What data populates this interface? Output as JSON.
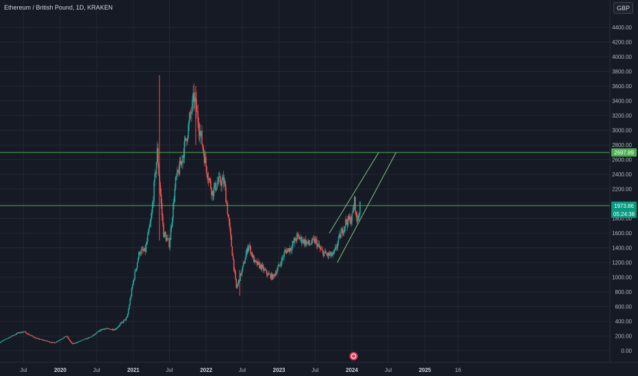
{
  "header": {
    "symbol_title": "Ethereum / British Pound, 1D, KRAKEN",
    "currency_button": "GBP"
  },
  "colors": {
    "background": "#161a25",
    "grid": "#232733",
    "up": "#26a69a",
    "down": "#ef5350",
    "level_line": "#4caf50",
    "channel_line": "#81c784",
    "current_tag": "#089981",
    "level_tag": "#4caf50",
    "event_marker": "#e2405f"
  },
  "chart_data": {
    "type": "candlestick",
    "title": "Ethereum / British Pound, 1D, KRAKEN",
    "ylabel": "",
    "xlabel": "",
    "ylim": [
      -150,
      4600
    ],
    "grid": true,
    "y_ticks": [
      "0.00",
      "200.00",
      "400.00",
      "600.00",
      "800.00",
      "1000.00",
      "1200.00",
      "1400.00",
      "1600.00",
      "1800.00",
      "2000.00",
      "2200.00",
      "2400.00",
      "2600.00",
      "2800.00",
      "3000.00",
      "3200.00",
      "3400.00",
      "3600.00",
      "3800.00",
      "4000.00",
      "4200.00",
      "4400.00"
    ],
    "x_ticks": [
      {
        "label": "Jul",
        "date": "2019-07",
        "year": false
      },
      {
        "label": "2020",
        "date": "2020-01",
        "year": true
      },
      {
        "label": "Jul",
        "date": "2020-07",
        "year": false
      },
      {
        "label": "2021",
        "date": "2021-01",
        "year": true
      },
      {
        "label": "Jul",
        "date": "2021-07",
        "year": false
      },
      {
        "label": "2022",
        "date": "2022-01",
        "year": true
      },
      {
        "label": "Jul",
        "date": "2022-07",
        "year": false
      },
      {
        "label": "2023",
        "date": "2023-01",
        "year": true
      },
      {
        "label": "Jul",
        "date": "2023-07",
        "year": false
      },
      {
        "label": "2024",
        "date": "2024-01",
        "year": true
      },
      {
        "label": "Jul",
        "date": "2024-07",
        "year": false
      },
      {
        "label": "2025",
        "date": "2025-01",
        "year": true
      },
      {
        "label": "16",
        "date": "2025-06-16",
        "year": false
      }
    ],
    "price_path": [
      [
        "2019-03",
        110
      ],
      [
        "2019-06",
        240
      ],
      [
        "2019-07",
        260
      ],
      [
        "2019-09",
        170
      ],
      [
        "2019-12",
        105
      ],
      [
        "2020-02",
        200
      ],
      [
        "2020-03",
        90
      ],
      [
        "2020-06",
        185
      ],
      [
        "2020-08",
        300
      ],
      [
        "2020-10",
        290
      ],
      [
        "2020-12",
        450
      ],
      [
        "2021-01",
        950
      ],
      [
        "2021-02",
        1350
      ],
      [
        "2021-03",
        1350
      ],
      [
        "2021-04",
        1800
      ],
      [
        "2021-05",
        2700
      ],
      [
        "2021-06",
        1600
      ],
      [
        "2021-07",
        1450
      ],
      [
        "2021-08",
        2300
      ],
      [
        "2021-09",
        2600
      ],
      [
        "2021-10",
        3000
      ],
      [
        "2021-11",
        3450
      ],
      [
        "2021-12",
        3000
      ],
      [
        "2022-01",
        2500
      ],
      [
        "2022-02",
        2150
      ],
      [
        "2022-03",
        2300
      ],
      [
        "2022-04",
        2300
      ],
      [
        "2022-05",
        1600
      ],
      [
        "2022-06",
        850
      ],
      [
        "2022-07",
        1100
      ],
      [
        "2022-08",
        1450
      ],
      [
        "2022-09",
        1200
      ],
      [
        "2022-10",
        1150
      ],
      [
        "2022-11",
        1050
      ],
      [
        "2022-12",
        1000
      ],
      [
        "2023-01",
        1150
      ],
      [
        "2023-02",
        1350
      ],
      [
        "2023-03",
        1400
      ],
      [
        "2023-04",
        1550
      ],
      [
        "2023-05",
        1500
      ],
      [
        "2023-06",
        1450
      ],
      [
        "2023-07",
        1500
      ],
      [
        "2023-08",
        1350
      ],
      [
        "2023-09",
        1300
      ],
      [
        "2023-10",
        1300
      ],
      [
        "2023-11",
        1550
      ],
      [
        "2023-12",
        1750
      ],
      [
        "2024-01",
        1800
      ],
      [
        "2024-01-15",
        2050
      ],
      [
        "2024-01-25",
        1750
      ],
      [
        "2024-02-05",
        1880
      ],
      [
        "2024-02-12",
        1974
      ]
    ],
    "wicks": [
      {
        "date": "2021-05-12",
        "high": 3750,
        "low": 1500
      },
      {
        "date": "2021-11-10",
        "high": 3600,
        "low": 2800
      },
      {
        "date": "2022-06-18",
        "high": 1100,
        "low": 750
      }
    ],
    "horizontal_levels": [
      {
        "value": 2697.89,
        "label": "2697.89"
      },
      {
        "value": 1973.86,
        "label": "1973.86"
      }
    ],
    "channel": [
      {
        "from": [
          "2023-09-10",
          1600
        ],
        "to": [
          "2024-05-15",
          2700
        ]
      },
      {
        "from": [
          "2023-10-20",
          1200
        ],
        "to": [
          "2024-08-10",
          2700
        ]
      }
    ],
    "current_price": {
      "value": 1973.86,
      "label": "1973.86",
      "countdown": "05:24:38"
    },
    "event_marker": {
      "date": "2024-01-10"
    }
  }
}
